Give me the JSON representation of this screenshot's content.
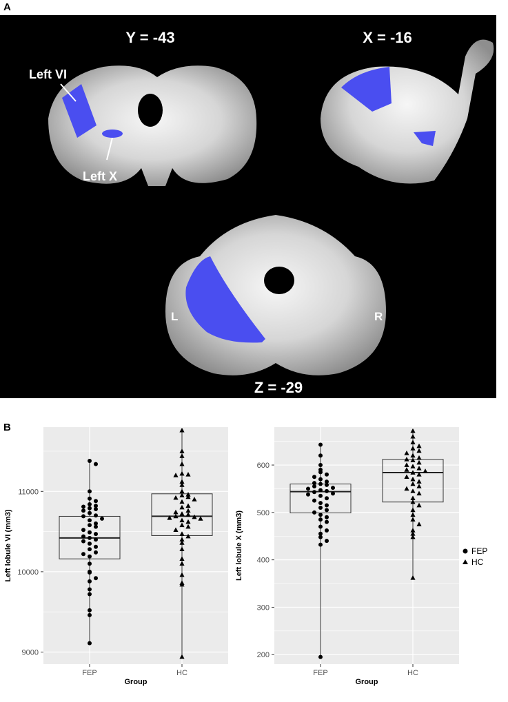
{
  "panel_a": {
    "letter": "A",
    "views": [
      {
        "label": "Y = -43"
      },
      {
        "label": "X = -16"
      },
      {
        "label": "Z = -29"
      }
    ],
    "annotations": [
      {
        "text": "Left VI"
      },
      {
        "text": "Left X"
      }
    ],
    "orientation": {
      "left": "L",
      "right": "R"
    },
    "colors": {
      "background": "#000000",
      "highlight": "#4a4ef0",
      "tissue": "#d4d4d4"
    }
  },
  "panel_b": {
    "letter": "B",
    "legend": [
      {
        "label": "FEP",
        "shape": "circle"
      },
      {
        "label": "HC",
        "shape": "triangle"
      }
    ]
  },
  "chart_data": [
    {
      "type": "box",
      "xlabel": "Group",
      "ylabel": "Left lobule VI (mm3)",
      "categories": [
        "FEP",
        "HC"
      ],
      "ylim": [
        8850,
        11800
      ],
      "yticks": [
        9000,
        10000,
        11000
      ],
      "grid": true,
      "boxes": [
        {
          "group": "FEP",
          "min": 9110,
          "q1": 10160,
          "median": 10420,
          "q3": 10690,
          "max": 11380
        },
        {
          "group": "HC",
          "min": 8940,
          "q1": 10450,
          "median": 10690,
          "q3": 10970,
          "max": 11760
        }
      ],
      "points": {
        "FEP": [
          11380,
          11340,
          11000,
          10910,
          10880,
          10840,
          10820,
          10810,
          10790,
          10780,
          10760,
          10730,
          10700,
          10690,
          10660,
          10640,
          10600,
          10580,
          10560,
          10520,
          10490,
          10470,
          10440,
          10420,
          10400,
          10380,
          10350,
          10310,
          10280,
          10240,
          10220,
          10190,
          10100,
          10000,
          9990,
          9920,
          9880,
          9780,
          9720,
          9520,
          9460,
          9110
        ],
        "HC": [
          11760,
          11500,
          11440,
          11340,
          11220,
          11210,
          11200,
          11120,
          11080,
          11000,
          10960,
          10950,
          10930,
          10920,
          10900,
          10870,
          10820,
          10800,
          10760,
          10740,
          10720,
          10710,
          10690,
          10680,
          10670,
          10660,
          10640,
          10620,
          10580,
          10560,
          10520,
          10470,
          10440,
          10400,
          10360,
          10280,
          10160,
          10100,
          9960,
          9860,
          9840,
          8940
        ]
      }
    },
    {
      "type": "box",
      "xlabel": "Group",
      "ylabel": "Left lobule X (mm3)",
      "categories": [
        "FEP",
        "HC"
      ],
      "ylim": [
        180,
        680
      ],
      "yticks": [
        200,
        300,
        400,
        500,
        600
      ],
      "grid": true,
      "boxes": [
        {
          "group": "FEP",
          "min": 195,
          "q1": 499,
          "median": 544,
          "q3": 560,
          "max": 643
        },
        {
          "group": "HC",
          "min": 362,
          "q1": 522,
          "median": 584,
          "q3": 612,
          "max": 672
        }
      ],
      "points": {
        "FEP": [
          643,
          620,
          600,
          590,
          585,
          580,
          575,
          570,
          565,
          562,
          560,
          558,
          555,
          552,
          550,
          547,
          545,
          543,
          540,
          538,
          535,
          530,
          525,
          520,
          515,
          510,
          505,
          500,
          495,
          490,
          485,
          480,
          470,
          462,
          455,
          448,
          440,
          432,
          195
        ],
        "HC": [
          672,
          660,
          648,
          640,
          635,
          630,
          625,
          620,
          615,
          612,
          610,
          605,
          600,
          597,
          593,
          590,
          587,
          584,
          580,
          575,
          570,
          565,
          560,
          555,
          550,
          545,
          540,
          530,
          522,
          515,
          505,
          495,
          485,
          475,
          462,
          455,
          448,
          362
        ]
      }
    }
  ]
}
